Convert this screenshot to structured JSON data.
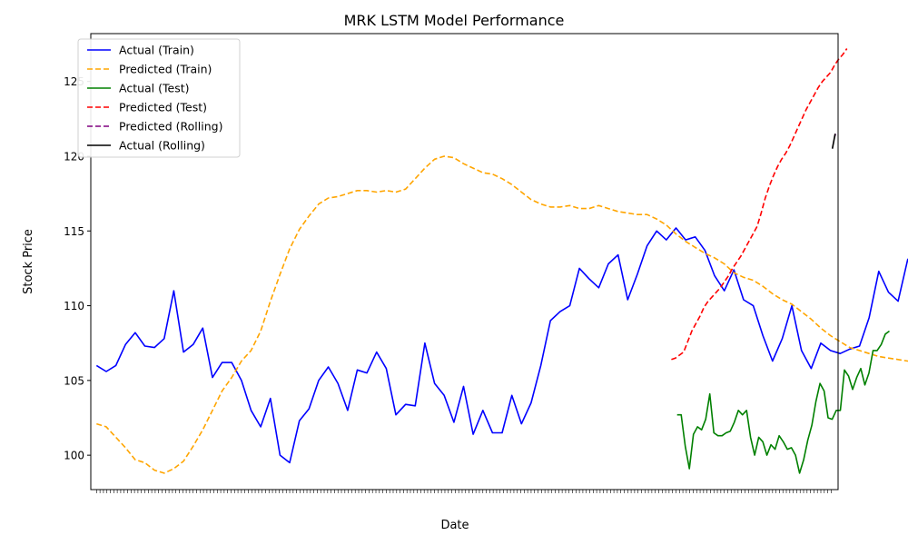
{
  "chart_data": {
    "type": "line",
    "title": "MRK LSTM Model Performance",
    "xlabel": "Date",
    "ylabel": "Stock Price",
    "ylim": [
      97.7,
      128.2
    ],
    "xlim": [
      -2,
      258
    ],
    "yticks": [
      100,
      105,
      110,
      115,
      120,
      125
    ],
    "legend_position": "top-left",
    "grid": false,
    "series": [
      {
        "name": "Actual (Train)",
        "color": "#0000ff",
        "dash": "solid",
        "x_start": 0,
        "x_step": 3.36,
        "values": [
          106.0,
          105.6,
          106.0,
          107.4,
          108.2,
          107.3,
          107.2,
          107.8,
          111.0,
          106.9,
          107.4,
          108.5,
          105.2,
          106.2,
          106.2,
          105.0,
          103.0,
          101.9,
          103.8,
          100.0,
          99.5,
          102.3,
          103.1,
          105.0,
          105.9,
          104.8,
          103.0,
          105.7,
          105.5,
          106.9,
          105.8,
          102.7,
          103.4,
          103.3,
          107.5,
          104.8,
          104.0,
          102.2,
          104.6,
          101.4,
          103.0,
          101.5,
          101.5,
          104.0,
          102.1,
          103.5,
          106.0,
          109.0,
          109.6,
          110.0,
          112.5,
          111.8,
          111.2,
          112.8,
          113.4,
          110.4,
          112.1,
          114.0,
          115.0,
          114.4,
          115.2,
          114.4,
          114.6,
          113.7,
          112.0,
          111.0,
          112.4,
          110.4,
          110.0,
          108.0,
          106.3,
          107.8,
          110.0,
          107.0,
          105.8,
          107.5,
          107.0,
          106.8,
          107.1,
          107.3,
          109.2,
          112.3,
          110.9,
          110.3,
          113.1,
          111.4,
          109.0,
          106.8,
          107.7,
          105.0,
          104.2,
          105.3,
          103.5,
          103.8,
          106.2,
          108.2,
          105.3,
          105.1,
          103.2,
          104.3,
          103.3,
          103.6,
          102.9,
          104.0,
          104.0,
          103.5,
          105.5,
          106.7,
          106.5,
          106.8,
          107.4,
          105.1,
          109.0,
          107.3,
          107.8,
          106.9,
          107.6,
          107.0,
          106.6,
          105.3,
          104.3,
          106.5,
          106.8,
          105.7,
          106.6,
          106.3,
          106.1,
          105.9,
          105.0,
          104.3,
          103.0,
          102.6,
          102.0,
          101.4
        ]
      },
      {
        "name": "Predicted (Train)",
        "color": "#ffa500",
        "dash": "dashed",
        "x_start": 0,
        "x_step": 3.36,
        "values": [
          102.1,
          101.9,
          101.2,
          100.5,
          99.7,
          99.5,
          99.0,
          98.8,
          99.1,
          99.6,
          100.6,
          101.7,
          103.0,
          104.3,
          105.2,
          106.3,
          107.0,
          108.3,
          110.3,
          112.1,
          113.8,
          115.1,
          116.0,
          116.8,
          117.2,
          117.3,
          117.5,
          117.7,
          117.7,
          117.6,
          117.7,
          117.6,
          117.8,
          118.5,
          119.2,
          119.8,
          120.0,
          119.9,
          119.5,
          119.2,
          118.9,
          118.8,
          118.5,
          118.1,
          117.6,
          117.1,
          116.8,
          116.6,
          116.6,
          116.7,
          116.5,
          116.5,
          116.7,
          116.5,
          116.3,
          116.2,
          116.1,
          116.1,
          115.8,
          115.4,
          114.8,
          114.3,
          113.9,
          113.5,
          113.2,
          112.8,
          112.2,
          111.9,
          111.7,
          111.3,
          110.8,
          110.4,
          110.1,
          109.6,
          109.1,
          108.5,
          108.0,
          107.6,
          107.2,
          107.0,
          106.8,
          106.6,
          106.5,
          106.4,
          106.3,
          106.3,
          106.4
        ]
      },
      {
        "name": "Actual (Test)",
        "color": "#008000",
        "dash": "solid",
        "x_start": 202,
        "x_step": 1.42,
        "values": [
          102.7,
          102.7,
          100.6,
          99.1,
          101.4,
          101.9,
          101.7,
          102.4,
          104.1,
          101.5,
          101.3,
          101.3,
          101.5,
          101.6,
          102.2,
          103.0,
          102.7,
          103.0,
          101.2,
          100.0,
          101.2,
          100.9,
          100.0,
          100.7,
          100.4,
          101.3,
          100.9,
          100.4,
          100.5,
          100.0,
          98.8,
          99.7,
          101.0,
          102.0,
          103.6,
          104.8,
          104.3,
          102.5,
          102.4,
          103.0,
          103.0,
          105.7,
          105.3,
          104.4,
          105.2,
          105.8,
          104.7,
          105.5,
          107.0,
          107.0,
          107.4,
          108.1,
          108.3
        ]
      },
      {
        "name": "Predicted (Test)",
        "color": "#ff0000",
        "dash": "dashed",
        "x_start": 200,
        "x_step": 1.42,
        "values": [
          106.4,
          106.5,
          106.7,
          106.9,
          107.6,
          108.3,
          108.8,
          109.3,
          109.9,
          110.3,
          110.6,
          110.9,
          111.2,
          111.6,
          112.0,
          112.5,
          112.9,
          113.3,
          113.8,
          114.3,
          114.8,
          115.3,
          116.2,
          117.2,
          118.0,
          118.7,
          119.3,
          119.8,
          120.2,
          120.7,
          121.3,
          121.9,
          122.5,
          123.1,
          123.6,
          124.1,
          124.6,
          125.0,
          125.3,
          125.6,
          126.1,
          126.5,
          126.8,
          127.2
        ]
      },
      {
        "name": "Predicted (Rolling)",
        "color": "#800080",
        "dash": "dashed",
        "x_start": 256.8,
        "x_step": 0.3,
        "values": [
          121.3,
          121.5
        ]
      },
      {
        "name": "Actual (Rolling)",
        "color": "#000000",
        "dash": "solid",
        "x_start": 256.0,
        "x_step": 1.0,
        "values": [
          120.5,
          121.5
        ]
      }
    ]
  }
}
